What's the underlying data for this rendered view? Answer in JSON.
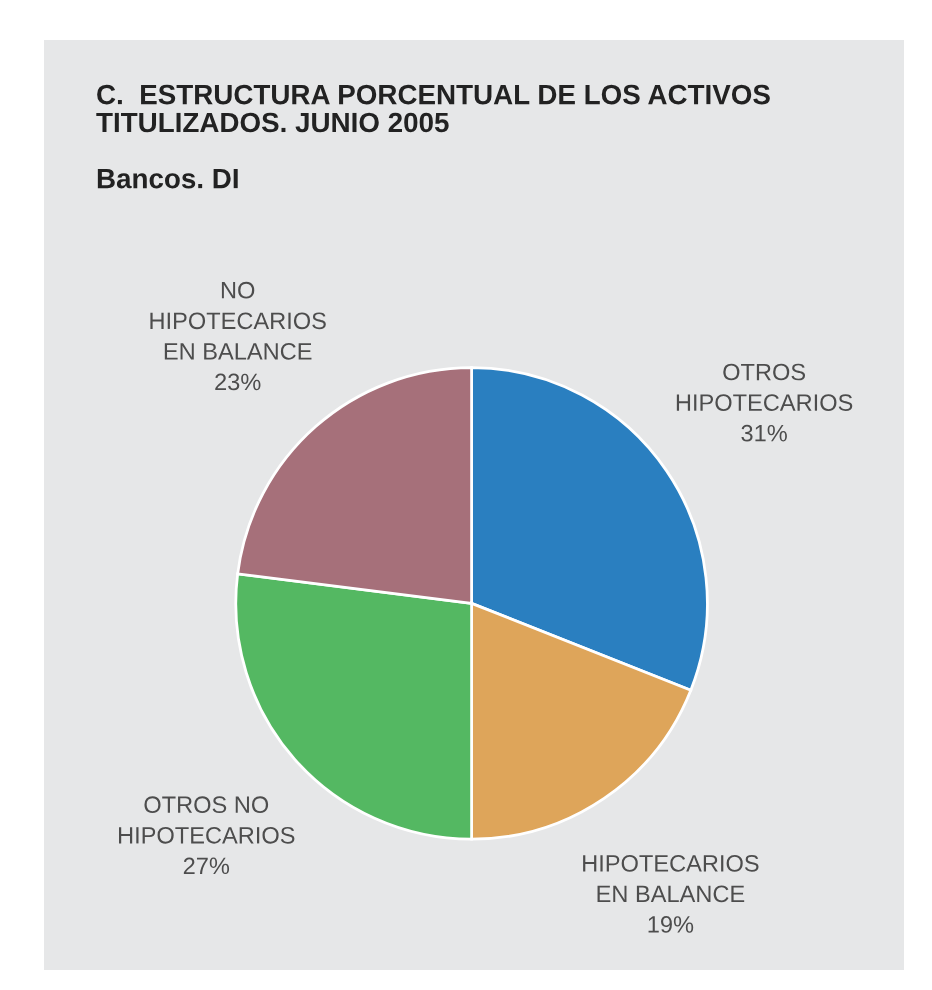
{
  "chart_data": {
    "type": "pie",
    "title": "C.  ESTRUCTURA PORCENTUAL DE LOS ACTIVOS\nTITULIZADOS. JUNIO 2005",
    "subtitle": "Bancos. DI",
    "categories": [
      "OTROS\nHIPOTECARIOS",
      "HIPOTECARIOS\nEN BALANCE",
      "OTROS NO\nHIPOTECARIOS",
      "NO\nHIPOTECARIOS\nEN BALANCE"
    ],
    "values": [
      31,
      19,
      27,
      23
    ],
    "colors": [
      "#2a7fc0",
      "#dea55a",
      "#54b862",
      "#a6707a"
    ],
    "value_labels": [
      "31%",
      "19%",
      "27%",
      "23%"
    ]
  }
}
